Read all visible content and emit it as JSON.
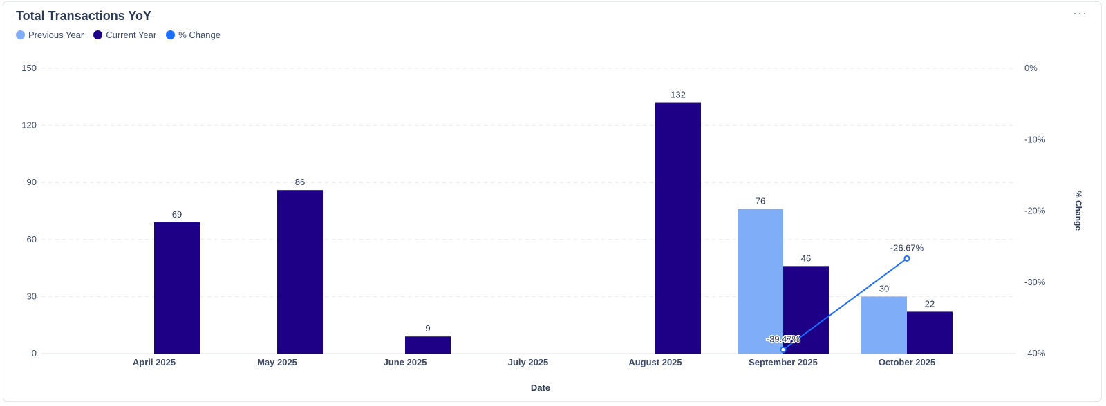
{
  "header": {
    "title": "Total Transactions YoY",
    "menu_label": "···"
  },
  "legend": [
    {
      "label": "Previous Year",
      "color": "#7fadf7"
    },
    {
      "label": "Current Year",
      "color": "#1e0087"
    },
    {
      "label": "% Change",
      "color": "#1a6dff"
    }
  ],
  "chart_data": {
    "type": "bar",
    "title": "Total Transactions YoY",
    "xlabel": "Date",
    "ylabel": "",
    "y2label": "% Change",
    "categories": [
      "April 2025",
      "May 2025",
      "June 2025",
      "July 2025",
      "August 2025",
      "September 2025",
      "October 2025"
    ],
    "ylim": [
      0,
      150
    ],
    "yticks": [
      0,
      30,
      60,
      90,
      120,
      150
    ],
    "y2lim": [
      -40,
      0
    ],
    "y2ticks": [
      0,
      -10,
      -20,
      -30,
      -40
    ],
    "series": [
      {
        "name": "Previous Year",
        "type": "bar",
        "axis": "left",
        "color": "#7fadf7",
        "values": [
          null,
          null,
          null,
          null,
          null,
          76,
          30
        ]
      },
      {
        "name": "Current Year",
        "type": "bar",
        "axis": "left",
        "color": "#1e0087",
        "values": [
          69,
          86,
          9,
          null,
          132,
          46,
          22
        ]
      },
      {
        "name": "% Change",
        "type": "line",
        "axis": "right",
        "color": "#1a6dff",
        "values": [
          null,
          null,
          null,
          null,
          null,
          -39.47,
          -26.67
        ],
        "labels": [
          null,
          null,
          null,
          null,
          null,
          "-39.47%",
          "-26.67%"
        ]
      }
    ],
    "grid": true,
    "legend_position": "top-left"
  }
}
